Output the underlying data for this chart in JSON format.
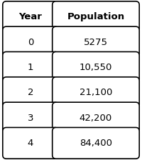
{
  "headers": [
    "Year",
    "Population"
  ],
  "rows": [
    [
      "0",
      "5275"
    ],
    [
      "1",
      "10,550"
    ],
    [
      "2",
      "21,100"
    ],
    [
      "3",
      "42,200"
    ],
    [
      "4",
      "84,400"
    ]
  ],
  "header_fontsize": 9.5,
  "cell_fontsize": 9.5,
  "bg_color": "#ffffff",
  "border_color": "#000000",
  "text_color": "#000000",
  "fig_width": 2.0,
  "fig_height": 2.24,
  "dpi": 100
}
